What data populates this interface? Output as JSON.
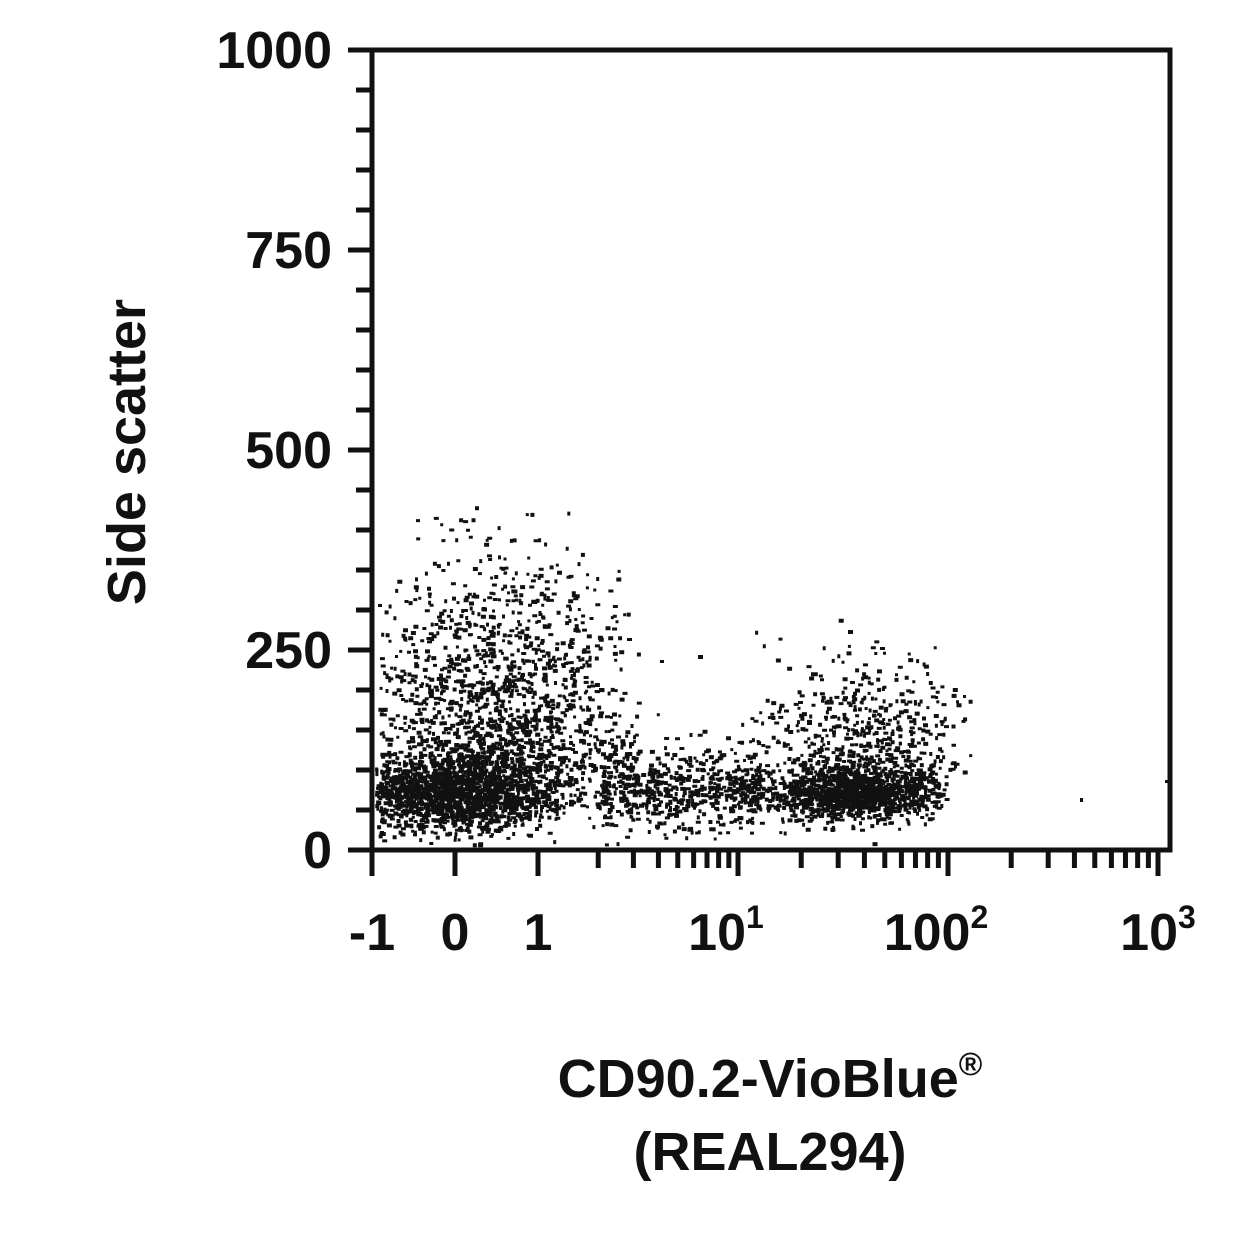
{
  "chart_data": {
    "type": "scatter",
    "title": "",
    "xlabel_line1": "CD90.2-VioBlue",
    "xlabel_mark": "®",
    "xlabel_line2": "(REAL294)",
    "ylabel": "Side scatter",
    "y_scale": "linear",
    "x_scale": "biexponential (linear -1..1, log 1..1000)",
    "ylim": [
      0,
      1000
    ],
    "xlim": [
      -1,
      1000
    ],
    "y_ticks": [
      {
        "value": 0,
        "label": "0"
      },
      {
        "value": 250,
        "label": "250"
      },
      {
        "value": 500,
        "label": "500"
      },
      {
        "value": 750,
        "label": "750"
      },
      {
        "value": 1000,
        "label": "1000"
      }
    ],
    "x_ticks": [
      {
        "value": -1,
        "label": "-1",
        "sup": ""
      },
      {
        "value": 0,
        "label": "0",
        "sup": ""
      },
      {
        "value": 1,
        "label": "1",
        "sup": ""
      },
      {
        "value": 10,
        "label": "10",
        "sup": "1"
      },
      {
        "value": 100,
        "label": "100",
        "sup": "2"
      },
      {
        "value": 1000,
        "label": "10",
        "sup": "3"
      }
    ],
    "populations": [
      {
        "name": "",
        "x_center": 0.3,
        "y_center": 65,
        "description": "large negative population",
        "y_spread_max": 330
      },
      {
        "name": "",
        "x_center": 35,
        "y_center": 65,
        "description": "positive population",
        "y_spread_max": 200
      }
    ],
    "grid": false,
    "legend": "none",
    "point_color": "#111111"
  }
}
